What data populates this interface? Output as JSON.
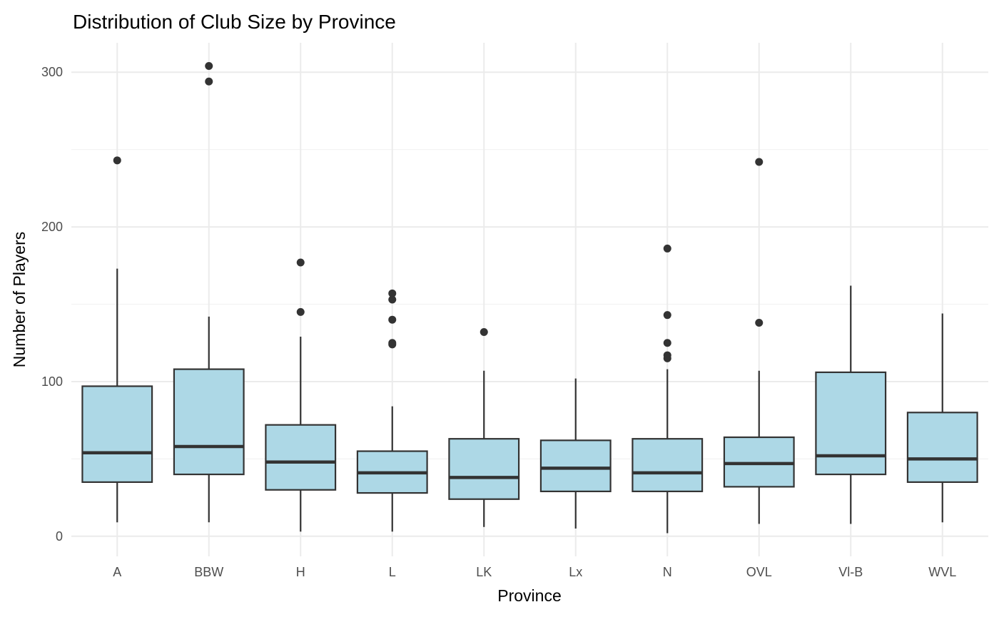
{
  "chart_data": {
    "type": "boxplot",
    "title": "Distribution of Club Size by Province",
    "xlabel": "Province",
    "ylabel": "Number of Players",
    "ylim": [
      -13,
      319
    ],
    "yticks": [
      0,
      100,
      200,
      300
    ],
    "grid": true,
    "box_color": "#add8e6",
    "line_color": "#333333",
    "categories": [
      "A",
      "BBW",
      "H",
      "L",
      "LK",
      "Lx",
      "N",
      "OVL",
      "Vl-B",
      "WVL"
    ],
    "boxes": [
      {
        "whisker_low": 9,
        "q1": 35,
        "median": 54,
        "q3": 97,
        "whisker_high": 173,
        "outliers": [
          243
        ]
      },
      {
        "whisker_low": 9,
        "q1": 40,
        "median": 58,
        "q3": 108,
        "whisker_high": 142,
        "outliers": [
          294,
          304
        ]
      },
      {
        "whisker_low": 3,
        "q1": 30,
        "median": 48,
        "q3": 72,
        "whisker_high": 129,
        "outliers": [
          145,
          177
        ]
      },
      {
        "whisker_low": 3,
        "q1": 28,
        "median": 41,
        "q3": 55,
        "whisker_high": 84,
        "outliers": [
          124,
          125,
          140,
          153,
          157
        ]
      },
      {
        "whisker_low": 6,
        "q1": 24,
        "median": 38,
        "q3": 63,
        "whisker_high": 107,
        "outliers": [
          132
        ]
      },
      {
        "whisker_low": 5,
        "q1": 29,
        "median": 44,
        "q3": 62,
        "whisker_high": 102,
        "outliers": []
      },
      {
        "whisker_low": 2,
        "q1": 29,
        "median": 41,
        "q3": 63,
        "whisker_high": 108,
        "outliers": [
          115,
          117,
          125,
          143,
          186
        ]
      },
      {
        "whisker_low": 8,
        "q1": 32,
        "median": 47,
        "q3": 64,
        "whisker_high": 107,
        "outliers": [
          138,
          242
        ]
      },
      {
        "whisker_low": 8,
        "q1": 40,
        "median": 52,
        "q3": 106,
        "whisker_high": 162,
        "outliers": []
      },
      {
        "whisker_low": 9,
        "q1": 35,
        "median": 50,
        "q3": 80,
        "whisker_high": 144,
        "outliers": []
      }
    ]
  }
}
